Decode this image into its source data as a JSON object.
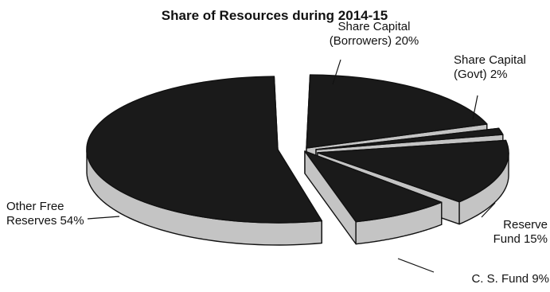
{
  "chart_data": {
    "type": "pie",
    "title": "Share of Resources during 2014-15",
    "slices": [
      {
        "name": "Share Capital (Borrowers)",
        "label_lines": [
          "Share Capital",
          "(Borrowers) 20%"
        ],
        "value": 20
      },
      {
        "name": "Share Capital (Govt)",
        "label_lines": [
          "Share Capital",
          "(Govt) 2%"
        ],
        "value": 2
      },
      {
        "name": "Reserve Fund",
        "label_lines": [
          "Reserve",
          "Fund 15%"
        ],
        "value": 15
      },
      {
        "name": "C. S. Fund",
        "label_lines": [
          "C. S. Fund 9%"
        ],
        "value": 9
      },
      {
        "name": "Other Free Reserves",
        "label_lines": [
          "Other Free",
          "Reserves 54%"
        ],
        "value": 54
      }
    ],
    "style": {
      "exploded": true,
      "three_d": true,
      "top_color": "#1a1a1a",
      "side_color": "#c4c4c4",
      "outline_color": "#111111"
    }
  }
}
